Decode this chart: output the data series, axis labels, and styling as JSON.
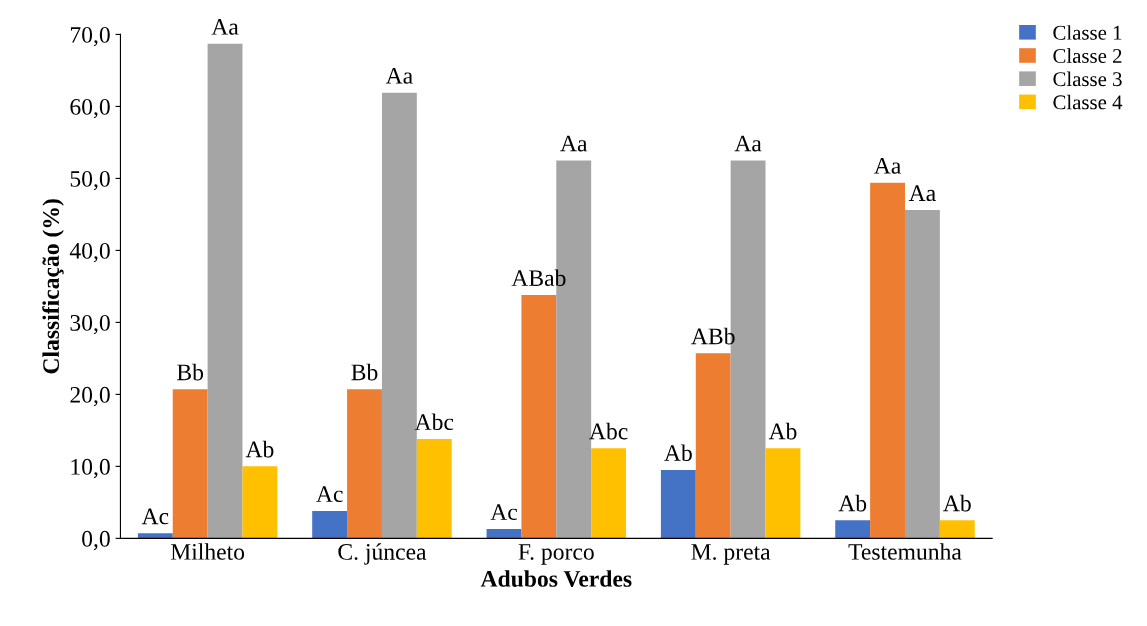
{
  "chart_data": {
    "type": "bar",
    "xlabel": "Adubos Verdes",
    "ylabel": "Classificação (%)",
    "categories": [
      "Milheto",
      "C. júncea",
      "F. porco",
      "M. preta",
      "Testemunha"
    ],
    "series": [
      {
        "name": "Classe 1",
        "color": "#4472c4",
        "values": [
          0.7,
          3.8,
          1.3,
          9.5,
          2.5
        ],
        "value_labels": [
          "Ac",
          "Ac",
          "Ac",
          "Ab",
          "Ab"
        ]
      },
      {
        "name": "Classe 2",
        "color": "#ed7d31",
        "values": [
          20.7,
          20.7,
          33.8,
          25.7,
          49.4
        ],
        "value_labels": [
          "Bb",
          "Bb",
          "ABab",
          "ABb",
          "Aa"
        ]
      },
      {
        "name": "Classe 3",
        "color": "#a5a5a5",
        "values": [
          68.7,
          61.9,
          52.5,
          52.5,
          45.6
        ],
        "value_labels": [
          "Aa",
          "Aa",
          "Aa",
          "Aa",
          "Aa"
        ]
      },
      {
        "name": "Classe 4",
        "color": "#ffc000",
        "values": [
          10.0,
          13.8,
          12.5,
          12.5,
          2.5
        ],
        "value_labels": [
          "Ab",
          "Abc",
          "Abc",
          "Ab",
          "Ab"
        ]
      }
    ],
    "ylim": [
      0,
      70
    ],
    "yticks": [
      {
        "value": 0,
        "label": "0,0"
      },
      {
        "value": 10,
        "label": "10,0"
      },
      {
        "value": 20,
        "label": "20,0"
      },
      {
        "value": 30,
        "label": "30,0"
      },
      {
        "value": 40,
        "label": "40,0"
      },
      {
        "value": 50,
        "label": "50,0"
      },
      {
        "value": 60,
        "label": "60,0"
      },
      {
        "value": 70,
        "label": "70,0"
      }
    ],
    "grid": false,
    "legend": "top right"
  }
}
